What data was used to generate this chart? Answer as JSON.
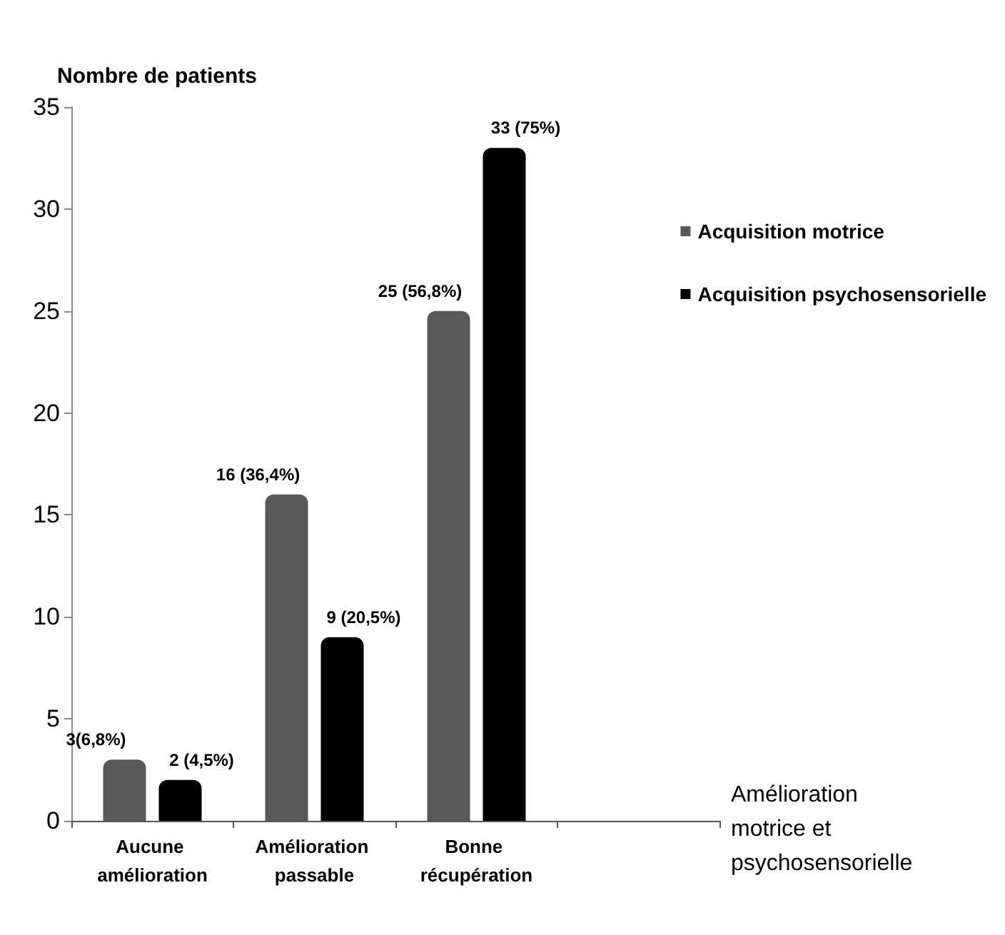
{
  "chart_data": {
    "type": "bar",
    "ylabel": "Nombre de patients",
    "xlabel": "Amélioration motrice et psychosensorielle",
    "categories": [
      "Aucune amélioration",
      "Amélioration passable",
      "Bonne récupération",
      null
    ],
    "series": [
      {
        "name": "Acquisition motrice",
        "color": "#595959",
        "values": [
          3,
          16,
          25,
          null
        ],
        "value_labels": [
          "3(6,8%)",
          "16 (36,4%)",
          "25 (56,8%)",
          null
        ]
      },
      {
        "name": "Acquisition psychosensorielle",
        "color": "#000000",
        "values": [
          2,
          9,
          33,
          null
        ],
        "value_labels": [
          "2 (4,5%)",
          "9 (20,5%)",
          "33 (75%)",
          null
        ]
      }
    ],
    "ylim": [
      0,
      35
    ],
    "yticks": [
      0,
      5,
      10,
      15,
      20,
      25,
      30,
      35
    ],
    "grid": false,
    "legend": "right"
  }
}
